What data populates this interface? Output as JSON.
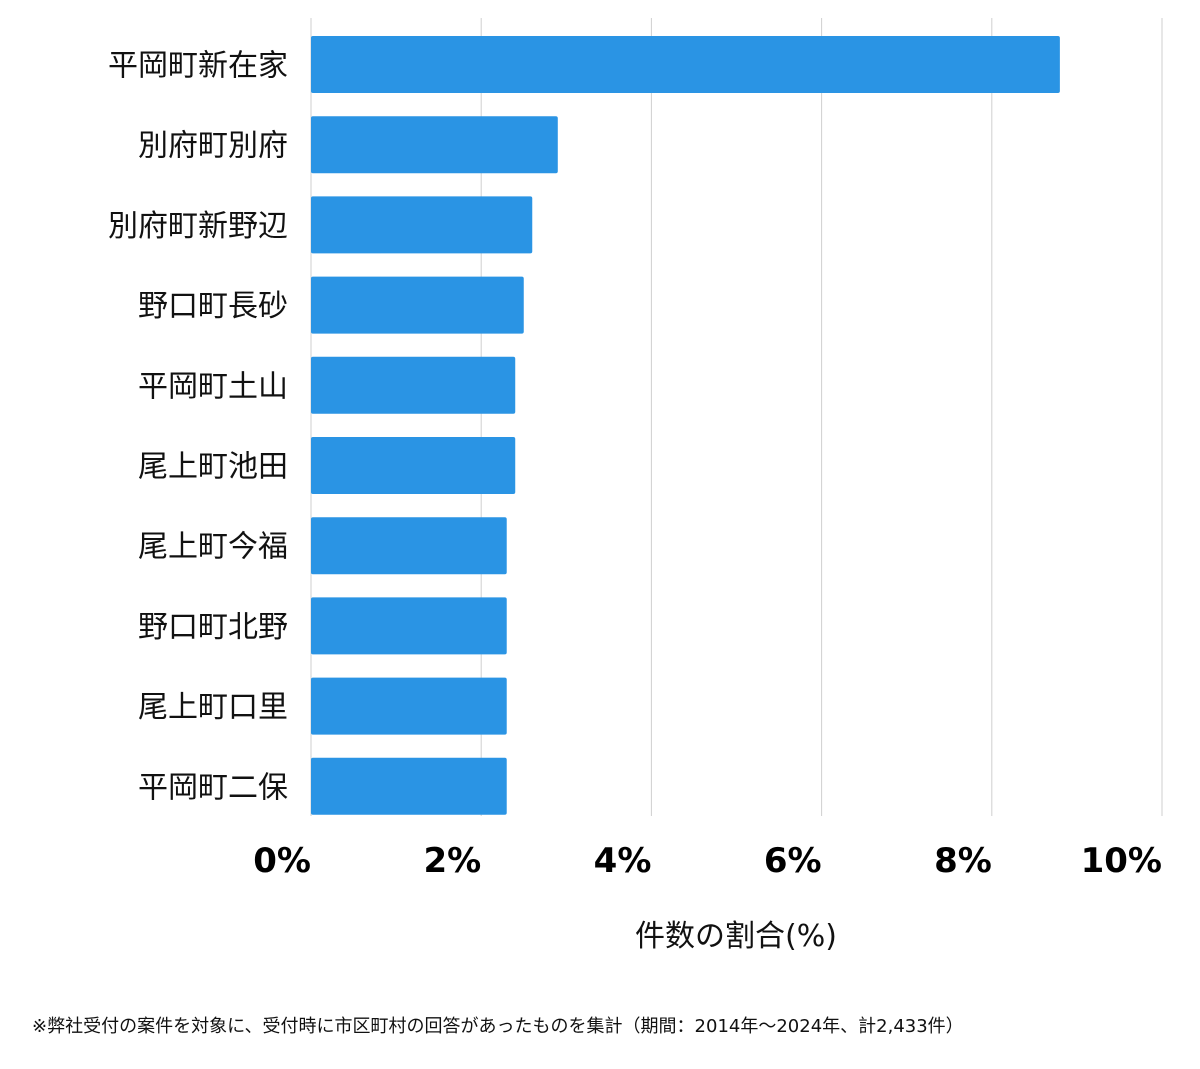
{
  "chart_data": {
    "type": "bar",
    "orientation": "horizontal",
    "categories": [
      "平岡町新在家",
      "別府町別府",
      "別府町新野辺",
      "野口町長砂",
      "平岡町土山",
      "尾上町池田",
      "尾上町今福",
      "野口町北野",
      "尾上町口里",
      "平岡町二保"
    ],
    "values": [
      8.8,
      2.9,
      2.6,
      2.5,
      2.4,
      2.4,
      2.3,
      2.3,
      2.3,
      2.3
    ],
    "xlabel": "件数の割合(%)",
    "ylabel": "",
    "xlim": [
      0,
      10
    ],
    "ticks": [
      "0%",
      "2%",
      "4%",
      "6%",
      "8%",
      "10%"
    ],
    "grid": true,
    "bar_color": "#2a94e4",
    "grid_color": "#cfcfcf"
  },
  "footnote": "※弊社受付の案件を対象に、受付時に市区町村の回答があったものを集計（期間：2014年～2024年、計2,433件）"
}
